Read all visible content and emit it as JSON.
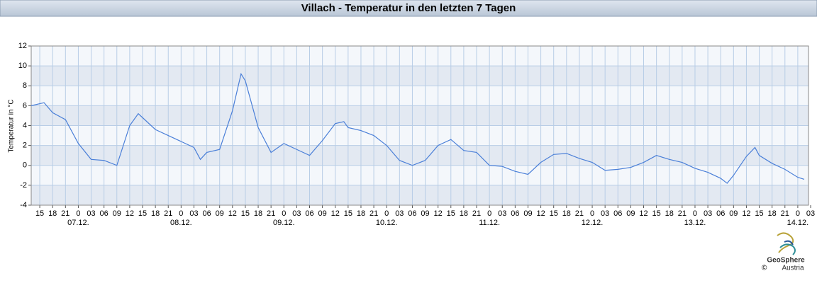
{
  "chart_data": {
    "type": "line",
    "title": "Villach - Temperatur in den letzten 7 Tagen",
    "ylabel": "Temperatur in °C",
    "x": [
      13,
      15,
      16,
      18,
      21,
      24,
      27,
      30,
      33,
      36,
      38,
      39,
      42,
      45,
      48,
      51,
      52.5,
      54,
      57,
      60,
      62,
      63,
      66,
      69,
      72,
      75,
      78,
      81,
      84,
      86,
      87,
      90,
      93,
      96,
      99,
      102,
      105,
      108,
      111,
      114,
      117,
      120,
      123,
      126,
      129,
      132,
      135,
      138,
      141,
      144,
      147,
      150,
      153,
      156,
      159,
      162,
      165,
      168,
      171,
      174,
      175.5,
      177,
      180,
      182,
      183,
      186,
      189,
      192,
      193.5
    ],
    "values": [
      6.0,
      6.2,
      6.3,
      5.3,
      4.6,
      2.2,
      0.6,
      0.5,
      0.0,
      4.0,
      5.2,
      4.8,
      3.6,
      3.0,
      2.4,
      1.8,
      0.6,
      1.3,
      1.6,
      5.5,
      9.2,
      8.5,
      3.8,
      1.3,
      2.2,
      1.6,
      1.0,
      2.5,
      4.2,
      4.4,
      3.8,
      3.5,
      3.0,
      2.0,
      0.5,
      0.0,
      0.5,
      2.0,
      2.6,
      1.5,
      1.3,
      0.0,
      -0.1,
      -0.6,
      -0.9,
      0.3,
      1.1,
      1.2,
      0.7,
      0.3,
      -0.5,
      -0.4,
      -0.2,
      0.3,
      1.0,
      0.6,
      0.3,
      -0.3,
      -0.7,
      -1.3,
      -1.8,
      -1.0,
      0.9,
      1.8,
      1.0,
      0.2,
      -0.4,
      -1.2,
      -1.4
    ],
    "color": "#4a7fd8",
    "xlim": [
      13,
      194.5
    ],
    "ylim": [
      -4,
      12
    ],
    "yticks": [
      -4,
      -2,
      0,
      2,
      4,
      6,
      8,
      10,
      12
    ],
    "grid": true,
    "xticks": [
      {
        "value": 15,
        "label": "15"
      },
      {
        "value": 18,
        "label": "18"
      },
      {
        "value": 21,
        "label": "21"
      },
      {
        "value": 24,
        "label": "0"
      },
      {
        "value": 27,
        "label": "03"
      },
      {
        "value": 30,
        "label": "06"
      },
      {
        "value": 33,
        "label": "09"
      },
      {
        "value": 36,
        "label": "12"
      },
      {
        "value": 39,
        "label": "15"
      },
      {
        "value": 42,
        "label": "18"
      },
      {
        "value": 45,
        "label": "21"
      },
      {
        "value": 48,
        "label": "0"
      },
      {
        "value": 51,
        "label": "03"
      },
      {
        "value": 54,
        "label": "06"
      },
      {
        "value": 57,
        "label": "09"
      },
      {
        "value": 60,
        "label": "12"
      },
      {
        "value": 63,
        "label": "15"
      },
      {
        "value": 66,
        "label": "18"
      },
      {
        "value": 69,
        "label": "21"
      },
      {
        "value": 72,
        "label": "0"
      },
      {
        "value": 75,
        "label": "03"
      },
      {
        "value": 78,
        "label": "06"
      },
      {
        "value": 81,
        "label": "09"
      },
      {
        "value": 84,
        "label": "12"
      },
      {
        "value": 87,
        "label": "15"
      },
      {
        "value": 90,
        "label": "18"
      },
      {
        "value": 93,
        "label": "21"
      },
      {
        "value": 96,
        "label": "0"
      },
      {
        "value": 99,
        "label": "03"
      },
      {
        "value": 102,
        "label": "06"
      },
      {
        "value": 105,
        "label": "09"
      },
      {
        "value": 108,
        "label": "12"
      },
      {
        "value": 111,
        "label": "15"
      },
      {
        "value": 114,
        "label": "18"
      },
      {
        "value": 117,
        "label": "21"
      },
      {
        "value": 120,
        "label": "0"
      },
      {
        "value": 123,
        "label": "03"
      },
      {
        "value": 126,
        "label": "06"
      },
      {
        "value": 129,
        "label": "09"
      },
      {
        "value": 132,
        "label": "12"
      },
      {
        "value": 135,
        "label": "15"
      },
      {
        "value": 138,
        "label": "18"
      },
      {
        "value": 141,
        "label": "21"
      },
      {
        "value": 144,
        "label": "0"
      },
      {
        "value": 147,
        "label": "03"
      },
      {
        "value": 150,
        "label": "06"
      },
      {
        "value": 153,
        "label": "09"
      },
      {
        "value": 156,
        "label": "12"
      },
      {
        "value": 159,
        "label": "15"
      },
      {
        "value": 162,
        "label": "18"
      },
      {
        "value": 165,
        "label": "21"
      },
      {
        "value": 168,
        "label": "0"
      },
      {
        "value": 171,
        "label": "03"
      },
      {
        "value": 174,
        "label": "06"
      },
      {
        "value": 177,
        "label": "09"
      },
      {
        "value": 180,
        "label": "12"
      },
      {
        "value": 183,
        "label": "15"
      },
      {
        "value": 186,
        "label": "18"
      },
      {
        "value": 189,
        "label": "21"
      },
      {
        "value": 192,
        "label": "0"
      },
      {
        "value": 195,
        "label": "03"
      }
    ],
    "xdates": [
      {
        "value": 24,
        "label": "07.12."
      },
      {
        "value": 48,
        "label": "08.12."
      },
      {
        "value": 72,
        "label": "09.12."
      },
      {
        "value": 96,
        "label": "10.12."
      },
      {
        "value": 120,
        "label": "11.12."
      },
      {
        "value": 144,
        "label": "12.12."
      },
      {
        "value": 168,
        "label": "13.12."
      },
      {
        "value": 192,
        "label": "14.12."
      }
    ]
  },
  "footer": {
    "logo_name": "GeoSphere",
    "logo_sub": "Austria",
    "copyright": "©"
  }
}
